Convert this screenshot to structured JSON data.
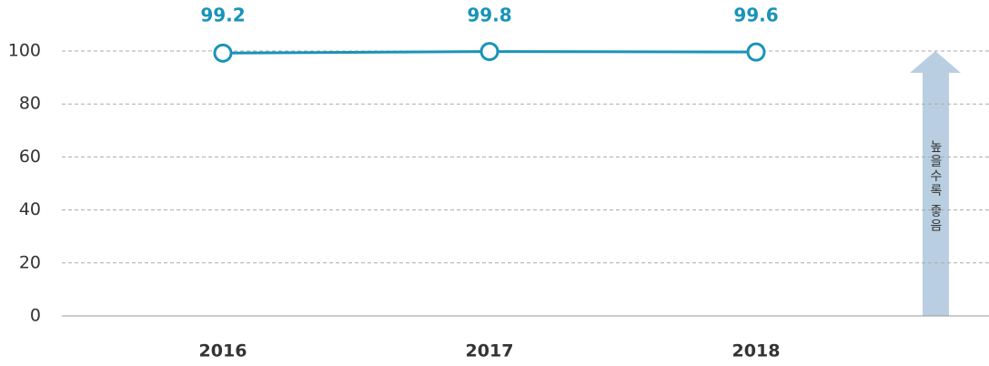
{
  "chart_data": {
    "type": "line",
    "categories": [
      "2016",
      "2017",
      "2018"
    ],
    "series": [
      {
        "name": null,
        "color": "#1a93b8",
        "values": [
          99.2,
          99.8,
          99.6
        ]
      }
    ],
    "ylim": [
      0,
      100
    ],
    "yticks": [
      0,
      20,
      40,
      60,
      80,
      100
    ],
    "grid": true,
    "annotation": "높을수록 좋음"
  }
}
